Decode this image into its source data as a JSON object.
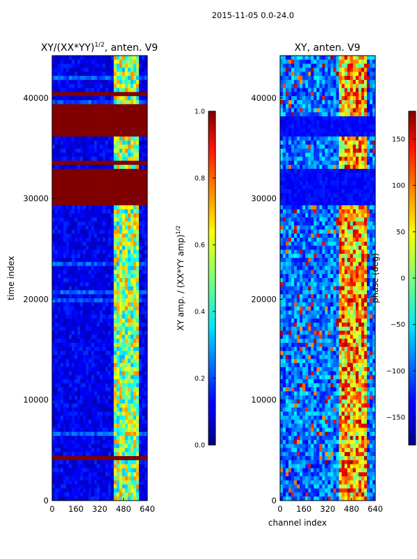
{
  "figure_title": "2015-11-05 0.0-24.0",
  "chart_data": [
    {
      "type": "heatmap",
      "title_main": "XY/(XX*YY)",
      "title_sup": "1/2",
      "title_rest": ", anten. V9",
      "xlabel": "",
      "ylabel": "time index",
      "xlim": [
        0,
        640
      ],
      "ylim": [
        0,
        44200
      ],
      "xticks": [
        0,
        160,
        320,
        480,
        640
      ],
      "yticks": [
        0,
        10000,
        20000,
        30000,
        40000
      ],
      "grid": false,
      "colorbar": {
        "label_main": "XY amp. / (XX*YY amp)",
        "label_sup": "1/2",
        "min": 0.0,
        "max": 1.0,
        "ticks": [
          "0.0",
          "0.2",
          "0.4",
          "0.6",
          "0.8",
          "1.0"
        ],
        "colormap": "jet"
      },
      "saturated_time_bands": [
        [
          29500,
          33000
        ],
        [
          36300,
          38000
        ],
        [
          38300,
          39400
        ],
        [
          40000,
          40600
        ],
        [
          34800,
          35000
        ],
        [
          33500,
          33700
        ],
        [
          4000,
          4300
        ],
        [
          3500,
          3700
        ],
        [
          700,
          900
        ]
      ],
      "high_channel_range": [
        410,
        580
      ]
    },
    {
      "type": "heatmap",
      "title_main": "XY, anten. V9",
      "xlabel": "channel index",
      "ylabel": "",
      "xlim": [
        0,
        640
      ],
      "ylim": [
        0,
        44200
      ],
      "xticks": [
        0,
        160,
        320,
        480,
        640
      ],
      "yticks": [
        0,
        10000,
        20000,
        30000,
        40000
      ],
      "grid": false,
      "colorbar": {
        "label_main": "phase (deg)",
        "min": -180,
        "max": 180,
        "ticks": [
          "150",
          "100",
          "50",
          "0",
          "−50",
          "−100",
          "−150"
        ],
        "colormap": "jet"
      },
      "low_phase_time_bands": [
        [
          29500,
          33000
        ],
        [
          36300,
          38000
        ]
      ],
      "high_channel_range": [
        400,
        580
      ]
    }
  ]
}
